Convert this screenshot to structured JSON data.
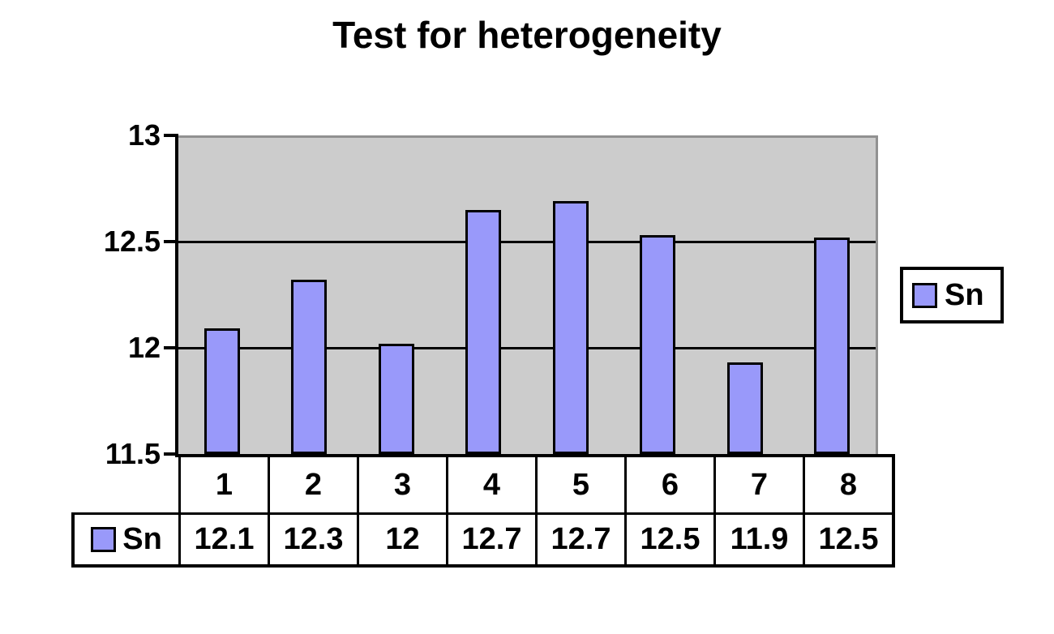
{
  "chart_data": {
    "type": "bar",
    "title": "Test for heterogeneity",
    "categories": [
      "1",
      "2",
      "3",
      "4",
      "5",
      "6",
      "7",
      "8"
    ],
    "series": [
      {
        "name": "Sn",
        "values": [
          12.1,
          12.3,
          12,
          12.7,
          12.7,
          12.5,
          11.9,
          12.5
        ],
        "display_values": [
          "12.1",
          "12.3",
          "12",
          "12.7",
          "12.7",
          "12.5",
          "11.9",
          "12.5"
        ],
        "plotted_values": [
          12.09,
          12.32,
          12.02,
          12.65,
          12.69,
          12.53,
          11.93,
          12.52
        ]
      }
    ],
    "xlabel": "",
    "ylabel": "",
    "ylim": [
      11.5,
      13
    ],
    "yticks": [
      {
        "value": 13,
        "label": "13"
      },
      {
        "value": 12.5,
        "label": "12.5"
      },
      {
        "value": 12,
        "label": "12"
      },
      {
        "value": 11.5,
        "label": "11.5"
      }
    ],
    "gridlines": [
      12.5,
      12
    ],
    "grid": "major-horizontal",
    "legend_position": "right",
    "data_table_shown": true,
    "colors": {
      "bar_fill": "#9999FA",
      "bar_border": "#000000",
      "plot_bg": "#CCCCCC",
      "plot_border": "#919191",
      "grid_line": "#000000",
      "axis_line": "#000000",
      "text": "#000000",
      "background": "#FFFFFF"
    }
  },
  "legend": {
    "label": "Sn"
  }
}
